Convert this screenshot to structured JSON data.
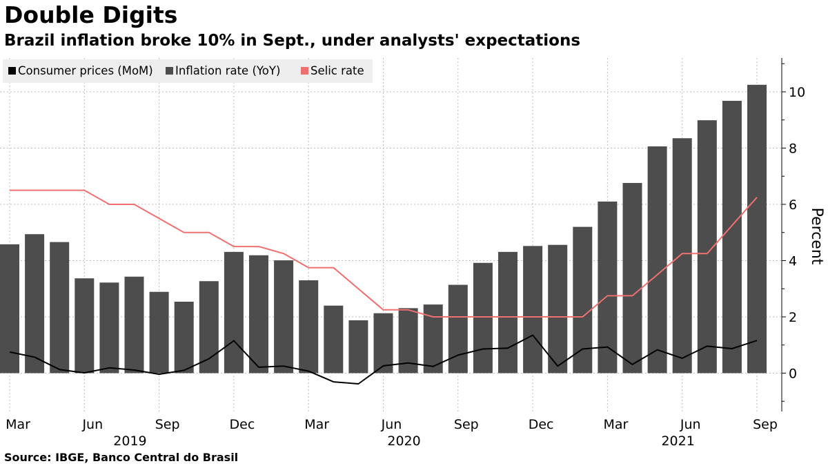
{
  "header": {
    "title": "Double Digits",
    "subtitle": "Brazil inflation broke 10% in Sept., under analysts' expectations"
  },
  "footer": {
    "source": "Source: IBGE, Banco Central do Brasil"
  },
  "colors": {
    "bars": "#4d4d4d",
    "mom_line": "#000000",
    "selic_line": "#f07070",
    "grid": "#bbbbbb",
    "legend_bg": "#eeeeee"
  },
  "chart_data": {
    "type": "bar",
    "ylabel": "Percent",
    "ylim": [
      -1.4,
      11.2
    ],
    "yticks": [
      0,
      2,
      4,
      6,
      8,
      10
    ],
    "grid": true,
    "legend_position": "top-left",
    "x": [
      "2019-03",
      "2019-04",
      "2019-05",
      "2019-06",
      "2019-07",
      "2019-08",
      "2019-09",
      "2019-10",
      "2019-11",
      "2019-12",
      "2020-01",
      "2020-02",
      "2020-03",
      "2020-04",
      "2020-05",
      "2020-06",
      "2020-07",
      "2020-08",
      "2020-09",
      "2020-10",
      "2020-11",
      "2020-12",
      "2021-01",
      "2021-02",
      "2021-03",
      "2021-04",
      "2021-05",
      "2021-06",
      "2021-07",
      "2021-08",
      "2021-09"
    ],
    "xtick_labels": [
      {
        "index": 0,
        "label": "Mar"
      },
      {
        "index": 3,
        "label": "Jun"
      },
      {
        "index": 6,
        "label": "Sep"
      },
      {
        "index": 9,
        "label": "Dec"
      },
      {
        "index": 12,
        "label": "Mar"
      },
      {
        "index": 15,
        "label": "Jun"
      },
      {
        "index": 18,
        "label": "Sep"
      },
      {
        "index": 21,
        "label": "Dec"
      },
      {
        "index": 24,
        "label": "Mar"
      },
      {
        "index": 27,
        "label": "Jun"
      },
      {
        "index": 30,
        "label": "Sep"
      }
    ],
    "year_labels": [
      {
        "index": 4.5,
        "label": "2019"
      },
      {
        "index": 15.5,
        "label": "2020"
      },
      {
        "index": 26.5,
        "label": "2021"
      }
    ],
    "series": [
      {
        "name": "Inflation rate (YoY)",
        "type": "bar",
        "values": [
          4.58,
          4.94,
          4.66,
          3.37,
          3.22,
          3.43,
          2.89,
          2.54,
          3.27,
          4.31,
          4.19,
          4.01,
          3.3,
          2.4,
          1.88,
          2.13,
          2.31,
          2.44,
          3.14,
          3.92,
          4.31,
          4.52,
          4.56,
          5.2,
          6.1,
          6.76,
          8.06,
          8.35,
          8.99,
          9.68,
          10.25
        ]
      },
      {
        "name": "Consumer prices (MoM)",
        "type": "line",
        "values": [
          0.75,
          0.57,
          0.13,
          0.01,
          0.19,
          0.11,
          -0.04,
          0.1,
          0.51,
          1.15,
          0.21,
          0.25,
          0.07,
          -0.31,
          -0.38,
          0.26,
          0.36,
          0.24,
          0.64,
          0.86,
          0.89,
          1.35,
          0.25,
          0.86,
          0.93,
          0.31,
          0.83,
          0.53,
          0.96,
          0.87,
          1.16
        ]
      },
      {
        "name": "Selic rate",
        "type": "line",
        "values": [
          6.5,
          6.5,
          6.5,
          6.5,
          6.0,
          6.0,
          5.5,
          5.0,
          5.0,
          4.5,
          4.5,
          4.25,
          3.75,
          3.75,
          3.0,
          2.25,
          2.25,
          2.0,
          2.0,
          2.0,
          2.0,
          2.0,
          2.0,
          2.0,
          2.75,
          2.75,
          3.5,
          4.25,
          4.25,
          5.25,
          6.25
        ]
      }
    ]
  }
}
